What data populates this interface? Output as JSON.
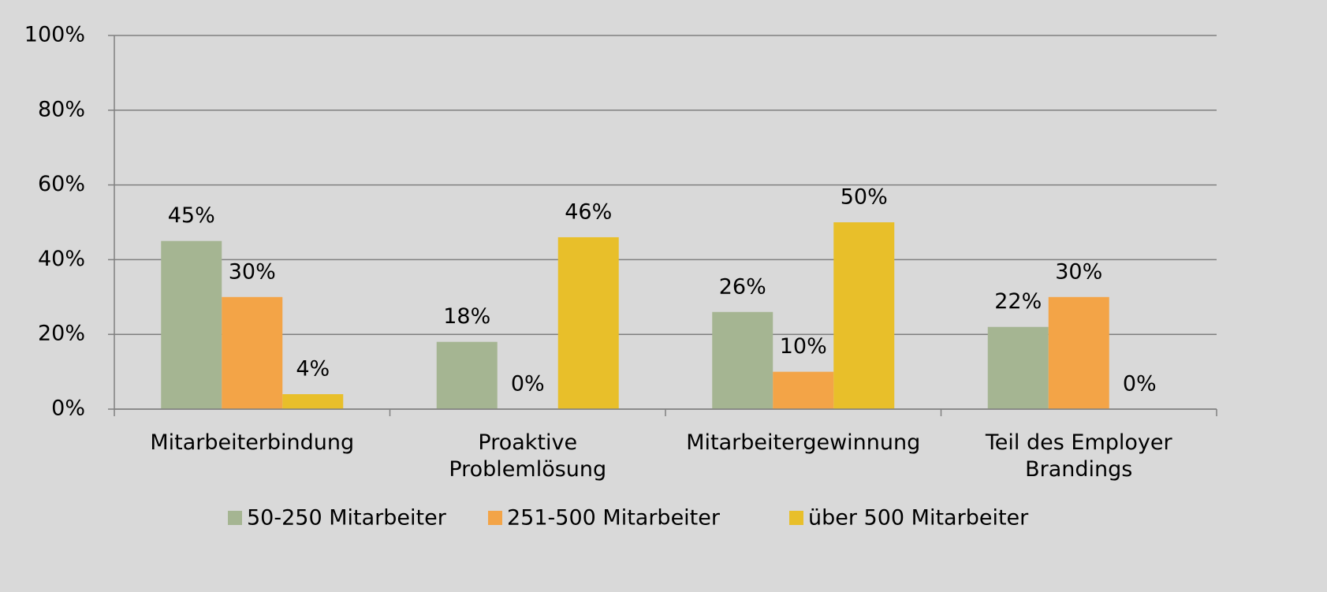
{
  "chart_data": {
    "type": "bar",
    "categories": [
      "Mitarbeiterbindung",
      "Proaktive\nProblemlösung",
      "Mitarbeitergewinnung",
      "Teil des Employer\nBrandings"
    ],
    "series": [
      {
        "name": "50-250 Mitarbeiter",
        "color": "#a5b592",
        "values": [
          45,
          18,
          26,
          22
        ],
        "value_labels": [
          "45%",
          "18%",
          "26%",
          "22%"
        ]
      },
      {
        "name": "251-500 Mitarbeiter",
        "color": "#f3a447",
        "values": [
          30,
          0,
          10,
          30
        ],
        "value_labels": [
          "30%",
          "0%",
          "10%",
          "30%"
        ]
      },
      {
        "name": "über 500 Mitarbeiter",
        "color": "#e8bf2a",
        "values": [
          4,
          46,
          50,
          0
        ],
        "value_labels": [
          "4%",
          "46%",
          "50%",
          "0%"
        ]
      }
    ],
    "ylim": [
      0,
      100
    ],
    "yticks": [
      {
        "value": 0,
        "label": "0%"
      },
      {
        "value": 20,
        "label": "20%"
      },
      {
        "value": 40,
        "label": "40%"
      },
      {
        "value": 60,
        "label": "60%"
      },
      {
        "value": 80,
        "label": "80%"
      },
      {
        "value": 100,
        "label": "100%"
      }
    ],
    "grid": true,
    "legend": "bottom"
  }
}
